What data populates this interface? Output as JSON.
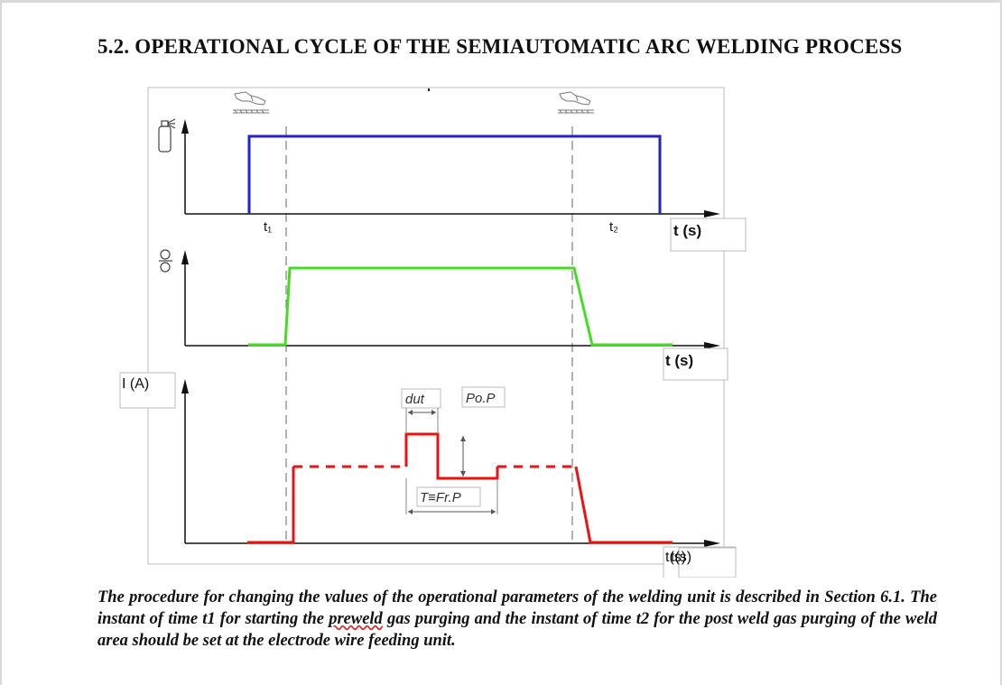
{
  "document": {
    "section_title": "5.2. OPERATIONAL CYCLE OF THE SEMIAUTOMATIC ARC WELDING PROCESS",
    "caption_part1": "The procedure for changing the values of the operational parameters of the welding unit is described in Section 6.1. The instant of time t1 for starting the ",
    "caption_preweld": "preweld",
    "caption_part2": " gas purging and the instant of time t2 for the post weld gas purging of the weld area should be set at the electrode wire feeding unit."
  },
  "diagram": {
    "t1_label": "t₁",
    "t2_label": "t₂",
    "gas_axis_label": "t (s)",
    "wire_axis_label": "t (s)",
    "current_axis_label": "t(s)",
    "current_overlap_label": "t(s)",
    "current_y_label": "I (A)",
    "param_dut": "dut",
    "param_pop": "Po.P",
    "param_frp": "T≡Fr.P",
    "icons": [
      "welding-torch-icon",
      "gas-cylinder-icon",
      "wire-feed-rollers-icon"
    ],
    "colors": {
      "gas_curve": "#2222cc",
      "wire_curve": "#44dd22",
      "current_curve": "#ee1111"
    }
  }
}
